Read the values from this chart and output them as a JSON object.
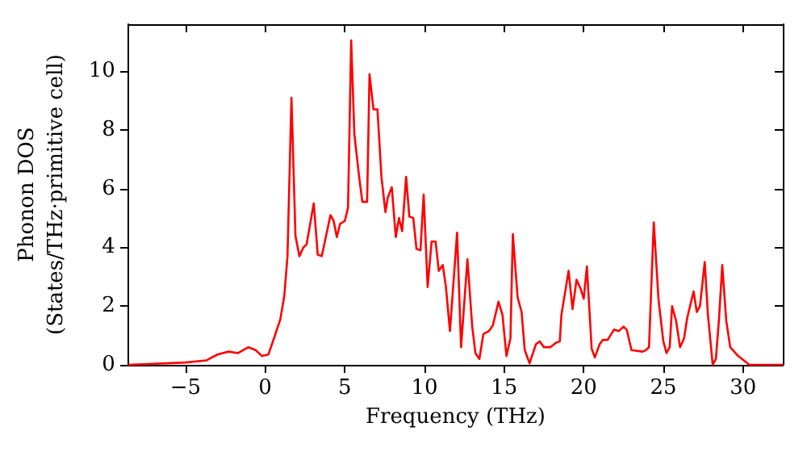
{
  "chart_data": {
    "type": "line",
    "xlabel": "Frequency (THz)",
    "ylabel": "Phonon DOS\n(States/THz·primitive cell)",
    "x": [
      -8.6,
      -5.0,
      -3.7,
      -3.0,
      -2.3,
      -1.7,
      -1.05,
      -0.6,
      -0.2,
      0.2,
      0.55,
      0.95,
      1.2,
      1.4,
      1.65,
      1.9,
      2.15,
      2.4,
      2.6,
      3.05,
      3.3,
      3.55,
      4.1,
      4.3,
      4.5,
      4.7,
      5.0,
      5.2,
      5.4,
      5.6,
      5.9,
      6.1,
      6.4,
      6.55,
      6.8,
      7.05,
      7.3,
      7.55,
      7.7,
      7.95,
      8.2,
      8.4,
      8.6,
      8.85,
      9.05,
      9.3,
      9.5,
      9.75,
      9.95,
      10.2,
      10.45,
      10.7,
      10.9,
      11.15,
      11.35,
      11.6,
      12.05,
      12.3,
      12.7,
      13.0,
      13.2,
      13.45,
      13.7,
      14.05,
      14.3,
      14.65,
      14.9,
      15.15,
      15.4,
      15.55,
      15.85,
      16.1,
      16.3,
      16.6,
      17.0,
      17.25,
      17.5,
      17.9,
      18.25,
      18.5,
      18.6,
      19.05,
      19.3,
      19.55,
      19.8,
      20.0,
      20.2,
      20.5,
      20.7,
      21.0,
      21.2,
      21.5,
      21.9,
      22.2,
      22.5,
      22.7,
      23.0,
      23.7,
      23.9,
      24.1,
      24.4,
      24.7,
      25.0,
      25.2,
      25.4,
      25.55,
      25.8,
      26.05,
      26.3,
      26.5,
      26.9,
      27.1,
      27.3,
      27.6,
      27.8,
      28.1,
      28.3,
      28.5,
      28.7,
      28.95,
      29.2,
      29.7,
      30.4,
      32.5
    ],
    "series": [
      {
        "color": "#ff0000",
        "values": [
          0,
          0.08,
          0.15,
          0.35,
          0.45,
          0.4,
          0.6,
          0.5,
          0.3,
          0.35,
          0.9,
          1.55,
          2.35,
          3.7,
          9.1,
          4.4,
          3.7,
          4.0,
          4.1,
          5.5,
          3.75,
          3.7,
          5.1,
          4.9,
          4.35,
          4.8,
          4.9,
          5.35,
          11.05,
          7.85,
          6.4,
          5.55,
          5.55,
          9.9,
          8.7,
          8.7,
          6.4,
          5.2,
          5.7,
          6.05,
          4.35,
          5.0,
          4.55,
          6.4,
          5.05,
          5.0,
          3.95,
          3.9,
          5.8,
          2.65,
          4.2,
          4.2,
          3.2,
          3.4,
          2.65,
          1.15,
          4.5,
          0.6,
          3.6,
          1.3,
          0.4,
          0.2,
          1.05,
          1.15,
          1.35,
          2.15,
          1.7,
          0.3,
          0.9,
          4.45,
          2.3,
          1.8,
          0.5,
          0.05,
          0.7,
          0.8,
          0.6,
          0.6,
          0.75,
          0.8,
          1.7,
          3.2,
          1.9,
          2.9,
          2.6,
          2.25,
          3.35,
          0.55,
          0.25,
          0.7,
          0.85,
          0.85,
          1.2,
          1.15,
          1.3,
          1.2,
          0.5,
          0.45,
          0.5,
          0.6,
          4.85,
          2.2,
          0.8,
          0.4,
          0.6,
          2.0,
          1.5,
          0.6,
          0.9,
          1.6,
          2.5,
          1.8,
          2.0,
          3.5,
          1.7,
          0.0,
          0.2,
          1.6,
          3.4,
          1.5,
          0.6,
          0.3,
          0,
          0
        ]
      }
    ],
    "xlim": [
      -8.6,
      32.5
    ],
    "xticks": [
      {
        "value": -5,
        "label": "−5"
      },
      0,
      5,
      10,
      15,
      20,
      25,
      30
    ],
    "ylim": [
      0,
      11.6
    ],
    "yticks": [
      0,
      2,
      4,
      6,
      8,
      10
    ],
    "grid": false,
    "marker": "none",
    "line_style": "solid"
  }
}
